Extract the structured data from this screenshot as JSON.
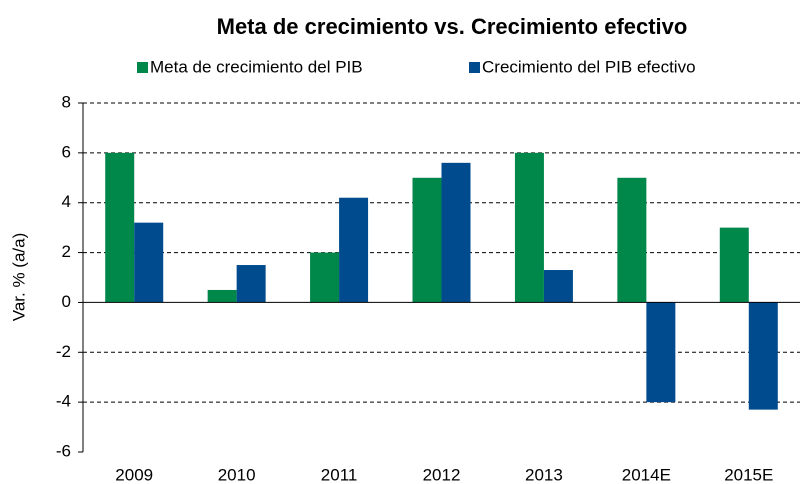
{
  "chart_data": {
    "type": "bar",
    "title": "Meta de crecimiento vs. Crecimiento efectivo",
    "y_label": "Var. % (a/a)",
    "categories": [
      "2009",
      "2010",
      "2011",
      "2012",
      "2013",
      "2014E",
      "2015E"
    ],
    "series": [
      {
        "name": "Meta de crecimiento del PIB",
        "color": "#00884b",
        "values": [
          6,
          0.5,
          2,
          5,
          6,
          5,
          3
        ]
      },
      {
        "name": "Crecimiento del PIB efectivo",
        "color": "#004b8d",
        "values": [
          3.2,
          1.5,
          4.2,
          5.6,
          1.3,
          -4,
          -4.3
        ]
      }
    ],
    "ylim": [
      -6,
      8
    ],
    "yticks": [
      -6,
      -4,
      -2,
      0,
      2,
      4,
      6,
      8
    ],
    "grid": true
  }
}
